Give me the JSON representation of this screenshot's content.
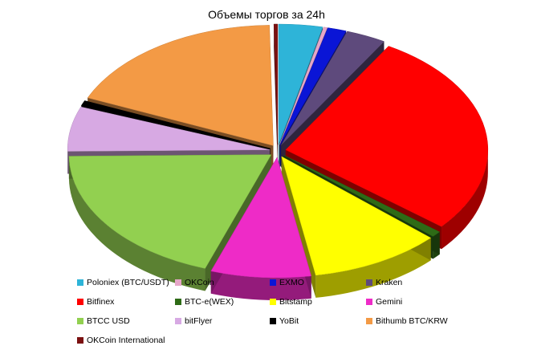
{
  "chart_data": {
    "type": "pie",
    "title": "Объемы торгов за 24h",
    "style": "3d-exploded",
    "legend_position": "bottom",
    "series": [
      {
        "name": "Poloniex (BTC/USDT)",
        "value": 3.5,
        "color": "#2eb4d8"
      },
      {
        "name": "OKCoin",
        "value": 0.3,
        "color": "#e6a6c8"
      },
      {
        "name": "EXMO",
        "value": 1.5,
        "color": "#0a15d6"
      },
      {
        "name": "Kraken",
        "value": 3.2,
        "color": "#5e4a7c"
      },
      {
        "name": "Bitfinex",
        "value": 27.5,
        "color": "#ff0000"
      },
      {
        "name": "BTC-e(WEX)",
        "value": 0.8,
        "color": "#2e6b16"
      },
      {
        "name": "Bitstamp",
        "value": 10.5,
        "color": "#ffff00"
      },
      {
        "name": "Gemini",
        "value": 8.0,
        "color": "#ee2bc7"
      },
      {
        "name": "BTCC USD",
        "value": 19.5,
        "color": "#92d050"
      },
      {
        "name": "bitFlyer",
        "value": 6.0,
        "color": "#d7a9e3"
      },
      {
        "name": "YoBit",
        "value": 0.7,
        "color": "#000000"
      },
      {
        "name": "Bithumb BTC/KRW",
        "value": 18.2,
        "color": "#f39a45"
      },
      {
        "name": "OKCoin  International",
        "value": 0.3,
        "color": "#7b1111"
      }
    ]
  }
}
